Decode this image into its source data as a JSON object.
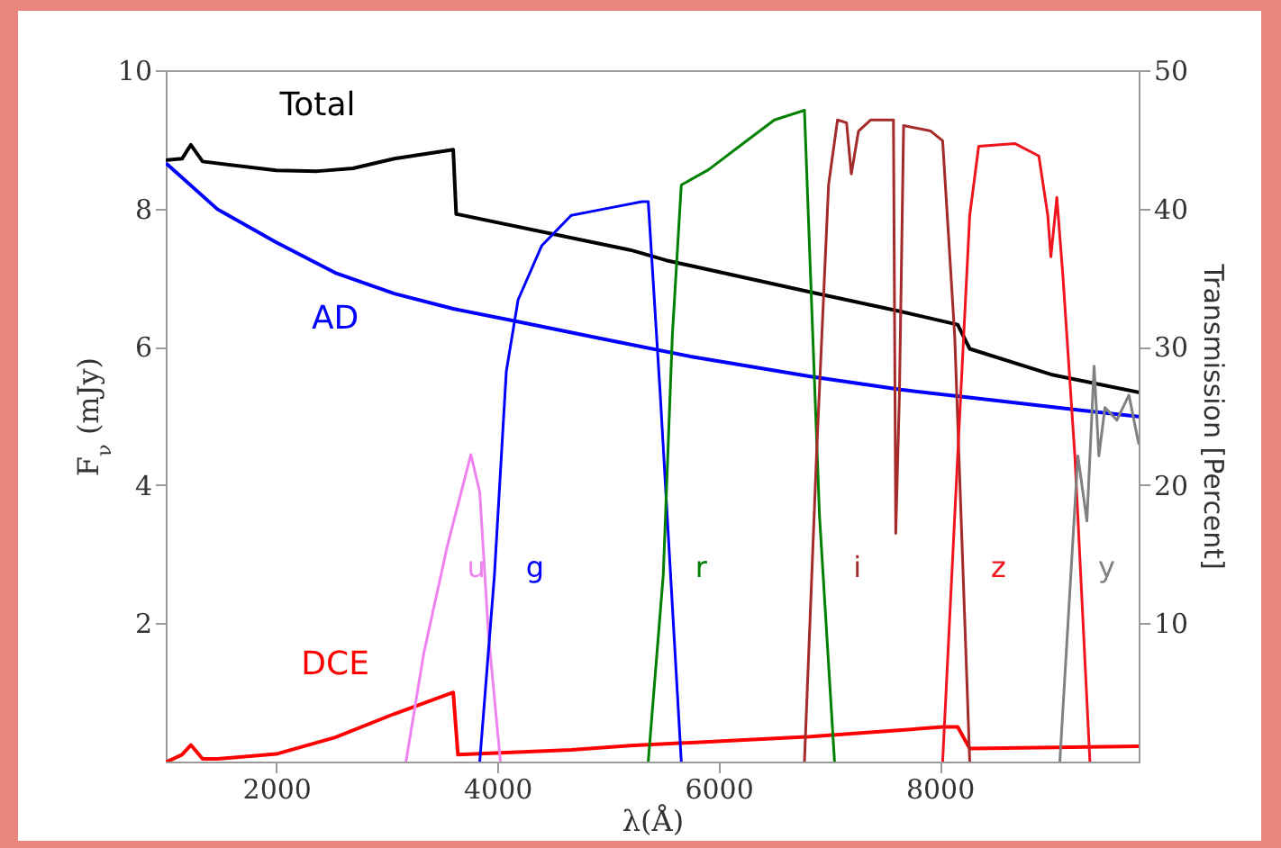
{
  "chart_data": {
    "type": "line",
    "xlabel": "λ(Å)",
    "ylabel": "F$_{ν}$ (mJy)",
    "y2label": "Transmission [Percent]",
    "xlim": [
      1000,
      9800
    ],
    "xticks": [
      2000,
      4000,
      6000,
      8000
    ],
    "ylim": [
      0,
      10
    ],
    "yticks": [
      2,
      4,
      6,
      8,
      10
    ],
    "y2lim": [
      0,
      50
    ],
    "y2ticks": [
      10,
      20,
      30,
      40,
      50
    ],
    "series": [
      {
        "name": "Total",
        "color": "#000000",
        "x": [
          1013,
          1147,
          1227,
          1333,
          2000,
          2373,
          2693,
          3067,
          3600,
          3627,
          5201,
          5527,
          6832,
          7647,
          8163,
          8272,
          9006,
          9800
        ],
        "values": [
          8.7,
          8.72,
          8.92,
          8.68,
          8.55,
          8.54,
          8.58,
          8.72,
          8.85,
          7.92,
          7.4,
          7.25,
          6.79,
          6.51,
          6.32,
          5.97,
          5.6,
          5.34
        ]
      },
      {
        "name": "AD",
        "color": "#0000ff",
        "x": [
          1013,
          1467,
          2000,
          2533,
          3067,
          3600,
          4133,
          4933,
          5745,
          6832,
          7647,
          8462,
          9277,
          9800
        ],
        "values": [
          8.64,
          7.99,
          7.51,
          7.07,
          6.77,
          6.55,
          6.38,
          6.12,
          5.86,
          5.57,
          5.38,
          5.23,
          5.08,
          4.99
        ]
      },
      {
        "name": "DCE",
        "color": "#ff0000",
        "x": [
          1013,
          1147,
          1227,
          1333,
          1467,
          2000,
          2533,
          3067,
          3600,
          3643,
          4667,
          5201,
          6832,
          8027,
          8163,
          8272,
          9800
        ],
        "values": [
          0,
          0.1,
          0.24,
          0.04,
          0.04,
          0.11,
          0.35,
          0.69,
          1.0,
          0.1,
          0.17,
          0.23,
          0.36,
          0.5,
          0.5,
          0.19,
          0.22
        ]
      },
      {
        "name": "u",
        "color": "#ee82ee",
        "axis": "y2",
        "x": [
          3173,
          3333,
          3547,
          3760,
          3840,
          3920,
          4027
        ],
        "values": [
          0,
          7.8,
          15.6,
          22.2,
          19.5,
          9.1,
          0
        ]
      },
      {
        "name": "g",
        "color": "#0000ff",
        "axis": "y2",
        "x": [
          3840,
          3973,
          4080,
          4187,
          4400,
          4667,
          4987,
          5307,
          5364,
          5473,
          5663
        ],
        "values": [
          0,
          13.5,
          28.2,
          33.4,
          37.3,
          39.5,
          40,
          40.5,
          40.5,
          26.5,
          0
        ]
      },
      {
        "name": "r",
        "color": "#008000",
        "axis": "y2",
        "x": [
          5364,
          5500,
          5582,
          5663,
          5908,
          6288,
          6505,
          6777,
          6832,
          6913,
          7049
        ],
        "values": [
          0,
          13.5,
          30.8,
          41.7,
          42.8,
          45.1,
          46.4,
          47.1,
          35.2,
          17.8,
          0
        ]
      },
      {
        "name": "i",
        "color": "#a52a2a",
        "axis": "y2",
        "x": [
          6777,
          6886,
          6995,
          7076,
          7158,
          7201,
          7266,
          7375,
          7582,
          7603,
          7636,
          7674,
          7919,
          8027,
          8136,
          8272
        ],
        "values": [
          0,
          22.1,
          41.7,
          46.4,
          46.2,
          42.5,
          45.6,
          46.4,
          46.4,
          16.5,
          26.5,
          46,
          45.6,
          44.9,
          30.8,
          0
        ]
      },
      {
        "name": "z",
        "color": "#f0141e",
        "axis": "y2",
        "x": [
          8027,
          8163,
          8272,
          8353,
          8679,
          8897,
          8978,
          9006,
          9060,
          9114,
          9223,
          9359
        ],
        "values": [
          0,
          22.1,
          39.5,
          44.5,
          44.7,
          43.8,
          39.5,
          36.5,
          40.8,
          35.2,
          22.1,
          0
        ]
      },
      {
        "name": "y",
        "color": "#808080",
        "axis": "y2",
        "x": [
          9087,
          9250,
          9332,
          9397,
          9440,
          9495,
          9603,
          9712,
          9800
        ],
        "values": [
          0,
          22.1,
          17.4,
          28.6,
          22.1,
          25.6,
          24.7,
          26.5,
          23
        ]
      }
    ]
  }
}
